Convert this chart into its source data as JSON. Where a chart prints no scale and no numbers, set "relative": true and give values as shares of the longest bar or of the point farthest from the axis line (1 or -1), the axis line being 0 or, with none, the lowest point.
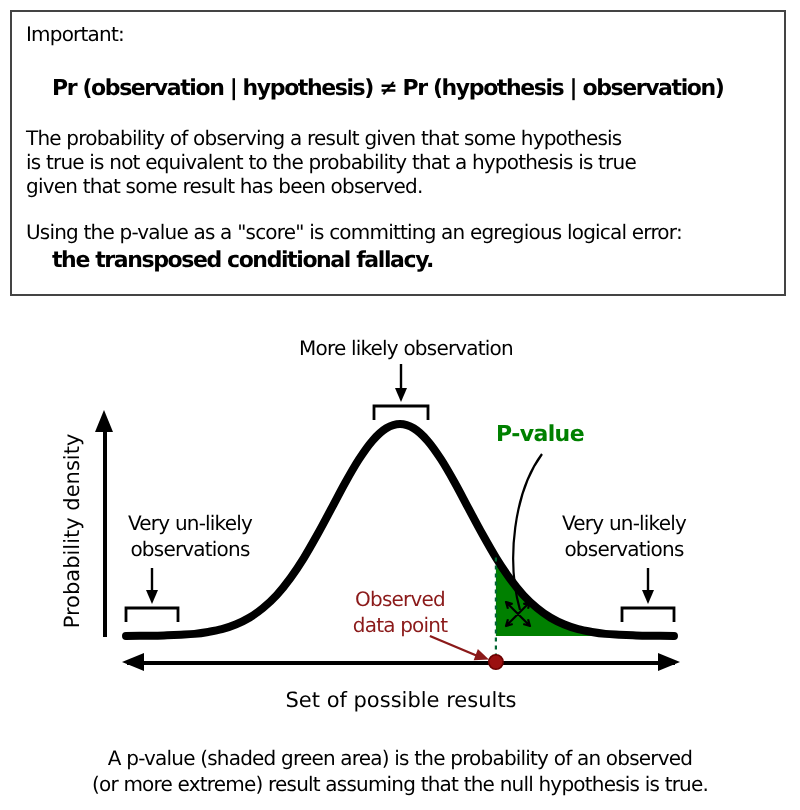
{
  "chart_data": {
    "type": "line",
    "relative": true,
    "xlabel": "Set of possible results",
    "ylabel": "Probability density",
    "categories": [
      null,
      null,
      null,
      null,
      null,
      null,
      null,
      null,
      null,
      null,
      null,
      null,
      null,
      null,
      null,
      null,
      null,
      null,
      null,
      null,
      null,
      null,
      null,
      null,
      null,
      null,
      null,
      null,
      null,
      null,
      null,
      null,
      null,
      null,
      null,
      null,
      null,
      null,
      null,
      null,
      null
    ],
    "series": [
      {
        "color": "#000000",
        "values": [
          0,
          0.001,
          0.001,
          0.003,
          0.006,
          0.01,
          0.019,
          0.032,
          0.054,
          0.086,
          0.132,
          0.193,
          0.273,
          0.37,
          0.482,
          0.602,
          0.723,
          0.833,
          0.922,
          0.98,
          1,
          0.98,
          0.922,
          0.833,
          0.723,
          0.602,
          0.482,
          0.37,
          0.273,
          0.193,
          0.132,
          0.086,
          0.054,
          0.032,
          0.019,
          0.01,
          0.006,
          0.003,
          0.001,
          0.001,
          0
        ]
      },
      {
        "type": "area",
        "name": "P-value",
        "color": "#008000",
        "values": [
          null,
          null,
          null,
          null,
          null,
          null,
          null,
          null,
          null,
          null,
          null,
          null,
          null,
          null,
          null,
          null,
          null,
          null,
          null,
          null,
          null,
          null,
          null,
          null,
          null,
          null,
          null,
          0.37,
          0.273,
          0.193,
          0.132,
          0.086,
          0.054,
          0.032,
          0.019,
          0.01,
          0.006,
          0.003,
          0.001,
          0.001,
          0
        ]
      }
    ],
    "annotations": [
      "Important:",
      "Pr (observation | hypothesis) ≠ Pr (hypothesis | observation)",
      "The probability of observing a result given that some hypothesis",
      "is true is not equivalent to the probability that a hypothesis is true",
      "given that some result has been observed.",
      "Using the p-value as a \"score\" is committing an egregious logical error:",
      "the transposed conditional fallacy.",
      "More likely observation",
      "Very un-likely observations",
      "Very un-likely observations",
      "Observed data point",
      "A p-value (shaded green area) is the probability of an observed",
      "(or more extreme) result assuming that the null hypothesis is true."
    ]
  }
}
